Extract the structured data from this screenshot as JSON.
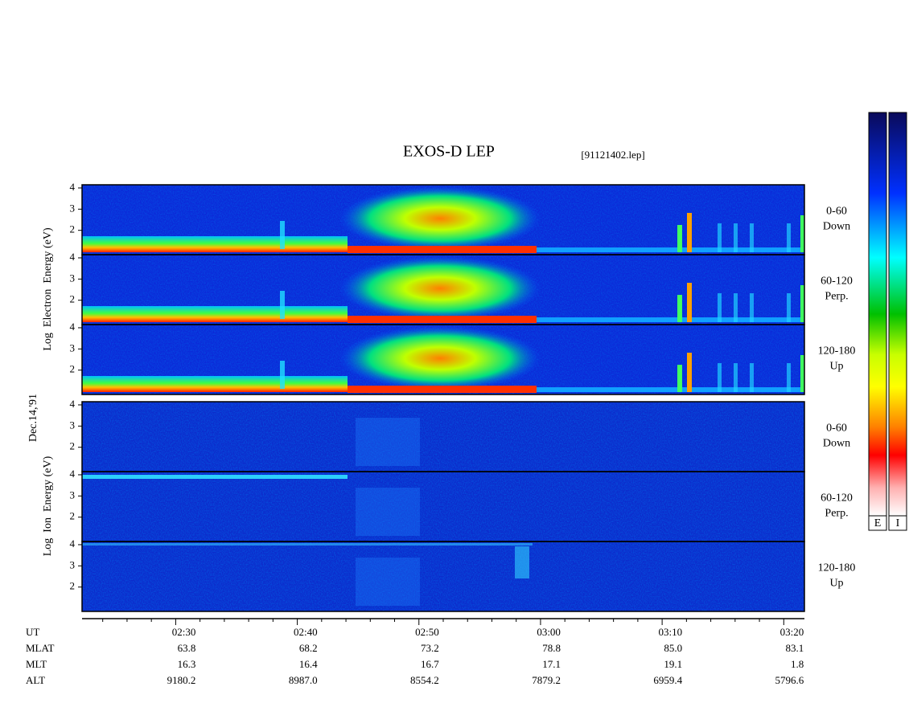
{
  "header": {
    "title": "EXOS-D LEP",
    "file": "[91121402.lep]"
  },
  "date": "Dec.14,'91",
  "groups": [
    {
      "ylabel": "Log  Electron  Energy (eV)",
      "panels": [
        {
          "angle": "0-60",
          "direction": "Down"
        },
        {
          "angle": "60-120",
          "direction": "Perp."
        },
        {
          "angle": "120-180",
          "direction": "Up"
        }
      ]
    },
    {
      "ylabel": "Log  Ion  Energy (eV)",
      "panels": [
        {
          "angle": "0-60",
          "direction": "Down"
        },
        {
          "angle": "60-120",
          "direction": "Perp."
        },
        {
          "angle": "120-180",
          "direction": "Up"
        }
      ]
    }
  ],
  "ylim": [
    0.85,
    4.15
  ],
  "yticks": [
    2,
    3,
    4
  ],
  "xlim": [
    142.3,
    201.7
  ],
  "xticks": [
    {
      "value": 150,
      "label": "02:30"
    },
    {
      "value": 160,
      "label": "02:40"
    },
    {
      "value": 170,
      "label": "02:50"
    },
    {
      "value": 180,
      "label": "03:00"
    },
    {
      "value": 190,
      "label": "03:10"
    },
    {
      "value": 200,
      "label": "03:20"
    }
  ],
  "minor_xticks": [
    144,
    146,
    148,
    152,
    154,
    156,
    158,
    162,
    164,
    166,
    168,
    172,
    174,
    176,
    178,
    182,
    184,
    186,
    188,
    192,
    194,
    196,
    198
  ],
  "ephemeris": {
    "rows": [
      {
        "label": "UT"
      },
      {
        "label": "MLAT",
        "values": [
          "63.8",
          "68.2",
          "73.2",
          "78.8",
          "85.0",
          "83.1"
        ]
      },
      {
        "label": "MLT",
        "values": [
          "16.3",
          "16.4",
          "16.7",
          "17.1",
          "19.1",
          "1.8"
        ]
      },
      {
        "label": "ALT",
        "values": [
          "9180.2",
          "8987.0",
          "8554.2",
          "7879.2",
          "6959.4",
          "5796.6"
        ]
      }
    ]
  },
  "colorbars": [
    "E",
    "I"
  ]
}
